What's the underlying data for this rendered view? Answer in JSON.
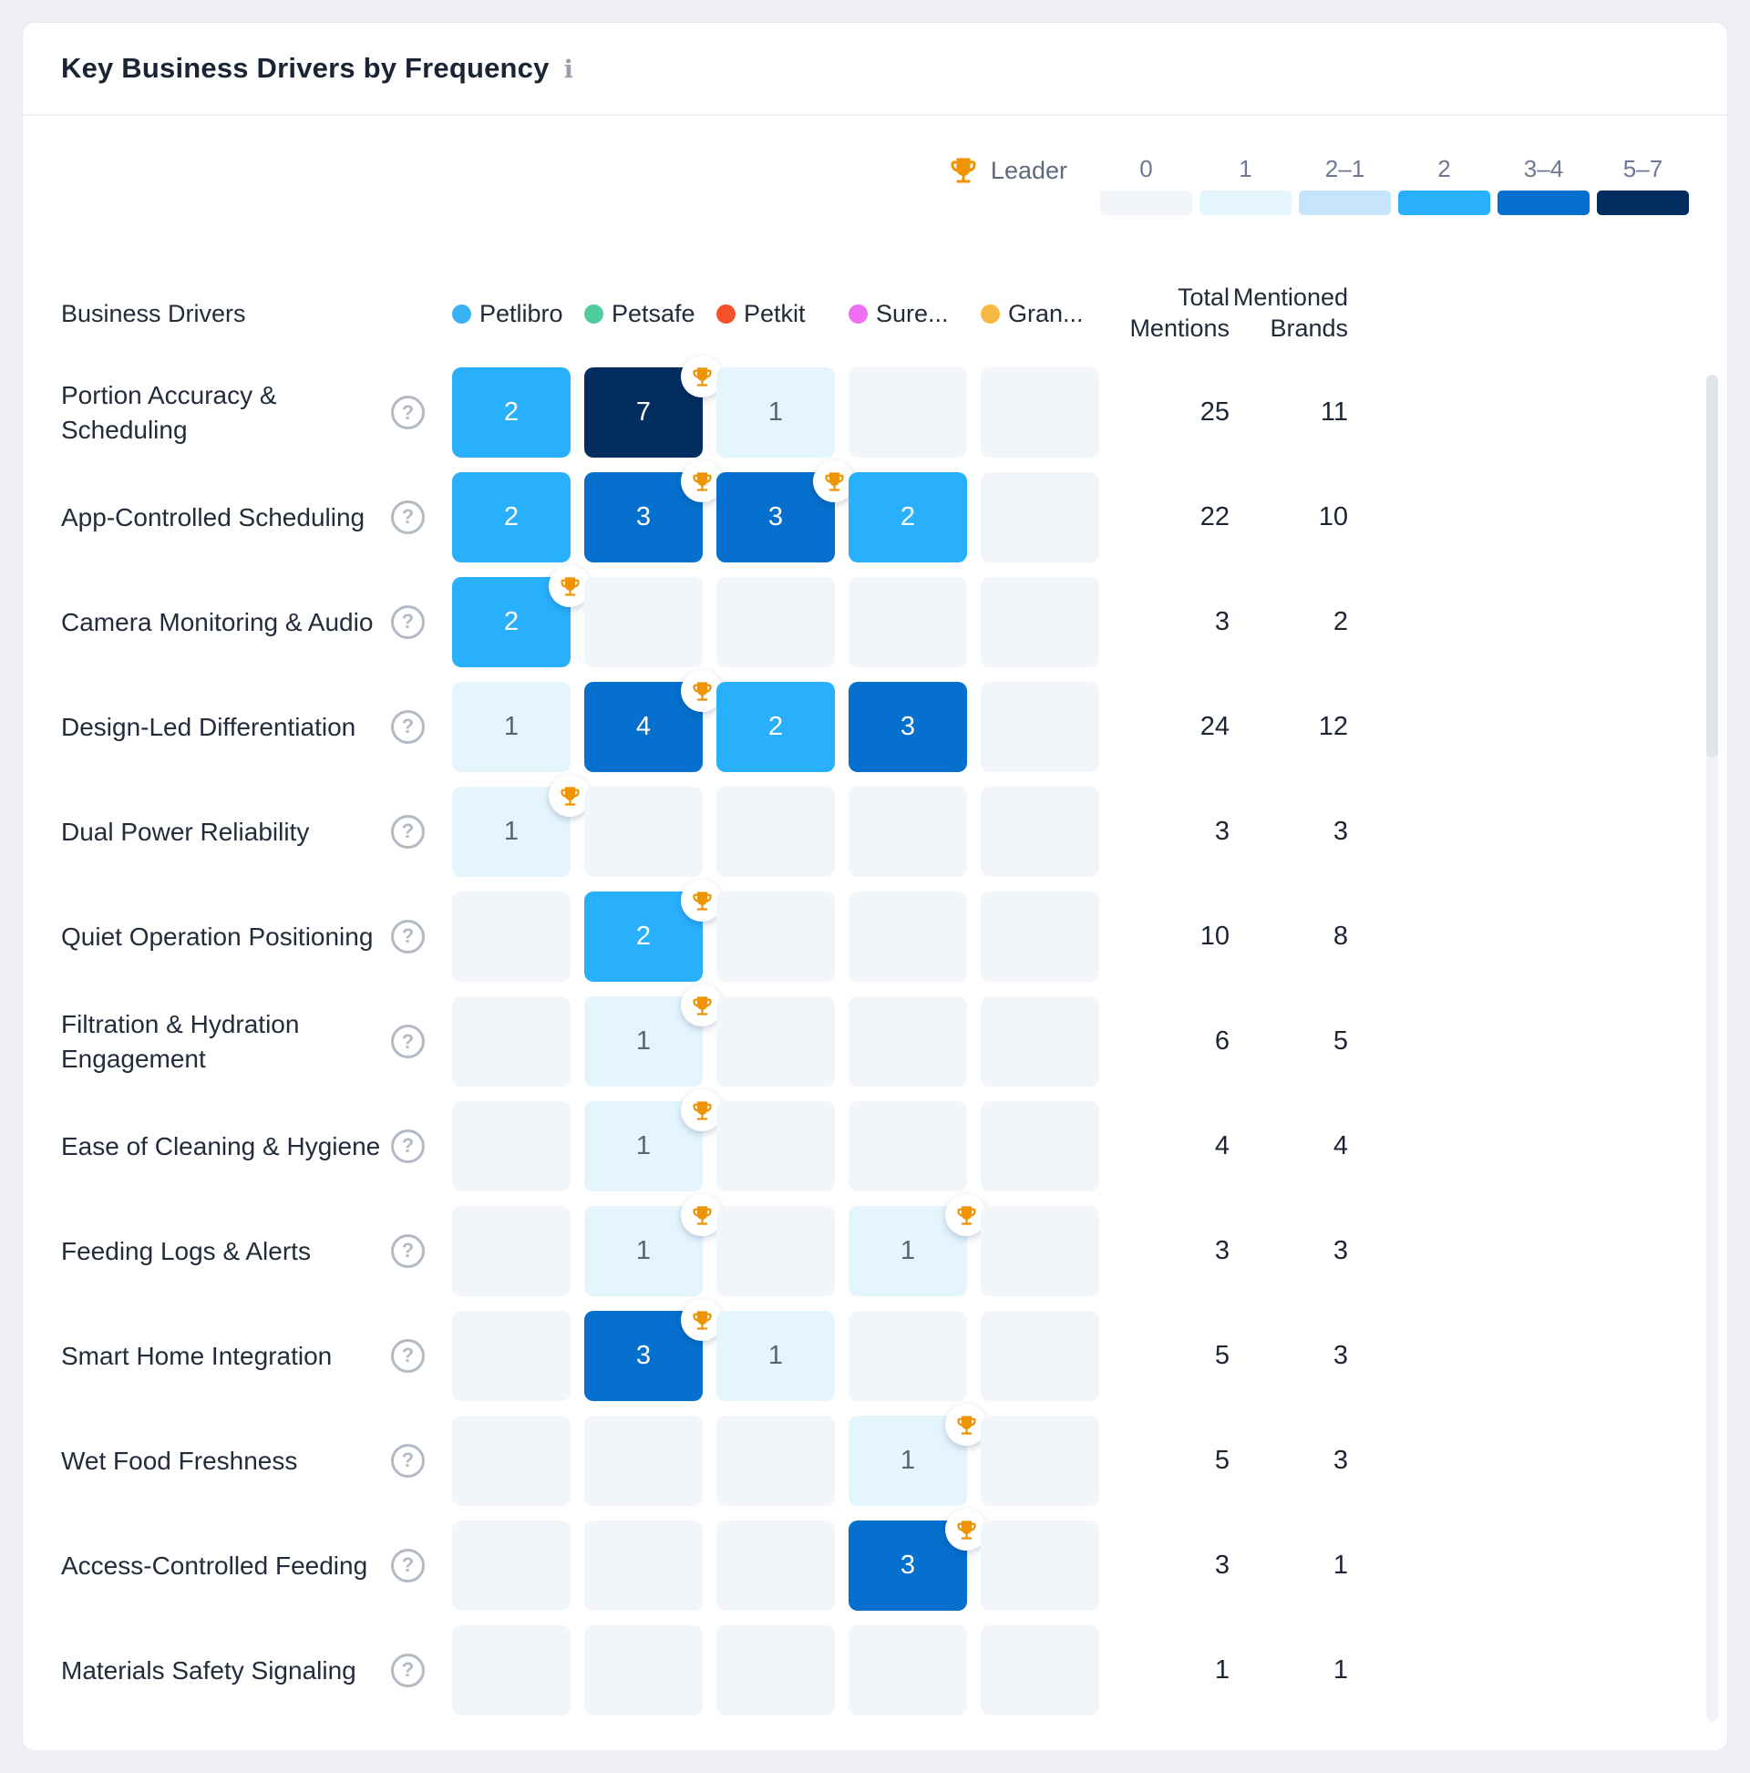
{
  "title": "Key Business Drivers by Frequency",
  "info_icon": "i",
  "help_icon": "?",
  "legend": {
    "leader_label": "Leader",
    "trophy_color": "#ef9400",
    "scale": [
      {
        "label": "0",
        "color": "#f2f5f9",
        "text": "#5a6473"
      },
      {
        "label": "1",
        "color": "#e4f5fd",
        "text": "#5a6473"
      },
      {
        "label": "2–1",
        "color": "#c6e4fb",
        "text": "#5a6473"
      },
      {
        "label": "2",
        "color": "#29b0fc",
        "text": "#ffffff"
      },
      {
        "label": "3–4",
        "color": "#0570cd",
        "text": "#ffffff"
      },
      {
        "label": "5–7",
        "color": "#032d5e",
        "text": "#ffffff"
      }
    ]
  },
  "table": {
    "drivers_header": "Business Drivers",
    "total_header": "Total Mentions",
    "mentioned_header": "Mentioned Brands",
    "brands": [
      {
        "name": "Petlibro",
        "color": "#38b1f6"
      },
      {
        "name": "Petsafe",
        "color": "#50cb9b"
      },
      {
        "name": "Petkit",
        "color": "#f4502a"
      },
      {
        "name": "Sure...",
        "color": "#ef6ef1"
      },
      {
        "name": "Gran...",
        "color": "#f6b944"
      }
    ],
    "rows": [
      {
        "label": "Portion Accuracy & Scheduling",
        "values": [
          2,
          7,
          1,
          0,
          0
        ],
        "leaders": [
          false,
          true,
          false,
          false,
          false
        ],
        "total": 25,
        "mentioned": 11
      },
      {
        "label": "App-Controlled Scheduling",
        "values": [
          2,
          3,
          3,
          2,
          0
        ],
        "leaders": [
          false,
          true,
          true,
          false,
          false
        ],
        "total": 22,
        "mentioned": 10
      },
      {
        "label": "Camera Monitoring & Audio",
        "values": [
          2,
          0,
          0,
          0,
          0
        ],
        "leaders": [
          true,
          false,
          false,
          false,
          false
        ],
        "total": 3,
        "mentioned": 2
      },
      {
        "label": "Design-Led Differentiation",
        "values": [
          1,
          4,
          2,
          3,
          0
        ],
        "leaders": [
          false,
          true,
          false,
          false,
          false
        ],
        "total": 24,
        "mentioned": 12
      },
      {
        "label": "Dual Power Reliability",
        "values": [
          1,
          0,
          0,
          0,
          0
        ],
        "leaders": [
          true,
          false,
          false,
          false,
          false
        ],
        "total": 3,
        "mentioned": 3
      },
      {
        "label": "Quiet Operation Positioning",
        "values": [
          0,
          2,
          0,
          0,
          0
        ],
        "leaders": [
          false,
          true,
          false,
          false,
          false
        ],
        "total": 10,
        "mentioned": 8
      },
      {
        "label": "Filtration & Hydration Engagement",
        "values": [
          0,
          1,
          0,
          0,
          0
        ],
        "leaders": [
          false,
          true,
          false,
          false,
          false
        ],
        "total": 6,
        "mentioned": 5
      },
      {
        "label": "Ease of Cleaning & Hygiene",
        "values": [
          0,
          1,
          0,
          0,
          0
        ],
        "leaders": [
          false,
          true,
          false,
          false,
          false
        ],
        "total": 4,
        "mentioned": 4
      },
      {
        "label": "Feeding Logs & Alerts",
        "values": [
          0,
          1,
          0,
          1,
          0
        ],
        "leaders": [
          false,
          true,
          false,
          true,
          false
        ],
        "total": 3,
        "mentioned": 3
      },
      {
        "label": "Smart Home Integration",
        "values": [
          0,
          3,
          1,
          0,
          0
        ],
        "leaders": [
          false,
          true,
          false,
          false,
          false
        ],
        "total": 5,
        "mentioned": 3
      },
      {
        "label": "Wet Food Freshness",
        "values": [
          0,
          0,
          0,
          1,
          0
        ],
        "leaders": [
          false,
          false,
          false,
          true,
          false
        ],
        "total": 5,
        "mentioned": 3
      },
      {
        "label": "Access-Controlled Feeding",
        "values": [
          0,
          0,
          0,
          3,
          0
        ],
        "leaders": [
          false,
          false,
          false,
          true,
          false
        ],
        "total": 3,
        "mentioned": 1
      },
      {
        "label": "Materials Safety Signaling",
        "values": [
          0,
          0,
          0,
          0,
          0
        ],
        "leaders": [
          false,
          false,
          false,
          false,
          false
        ],
        "total": 1,
        "mentioned": 1
      }
    ]
  },
  "chart_data": {
    "type": "heatmap",
    "title": "Key Business Drivers by Frequency",
    "columns": [
      "Petlibro",
      "Petsafe",
      "Petkit",
      "Sure...",
      "Gran..."
    ],
    "rows": [
      "Portion Accuracy & Scheduling",
      "App-Controlled Scheduling",
      "Camera Monitoring & Audio",
      "Design-Led Differentiation",
      "Dual Power Reliability",
      "Quiet Operation Positioning",
      "Filtration & Hydration Engagement",
      "Ease of Cleaning & Hygiene",
      "Feeding Logs & Alerts",
      "Smart Home Integration",
      "Wet Food Freshness",
      "Access-Controlled Feeding",
      "Materials Safety Signaling"
    ],
    "values": [
      [
        2,
        7,
        1,
        0,
        0
      ],
      [
        2,
        3,
        3,
        2,
        0
      ],
      [
        2,
        0,
        0,
        0,
        0
      ],
      [
        1,
        4,
        2,
        3,
        0
      ],
      [
        1,
        0,
        0,
        0,
        0
      ],
      [
        0,
        2,
        0,
        0,
        0
      ],
      [
        0,
        1,
        0,
        0,
        0
      ],
      [
        0,
        1,
        0,
        0,
        0
      ],
      [
        0,
        1,
        0,
        1,
        0
      ],
      [
        0,
        3,
        1,
        0,
        0
      ],
      [
        0,
        0,
        0,
        1,
        0
      ],
      [
        0,
        0,
        0,
        3,
        0
      ],
      [
        0,
        0,
        0,
        0,
        0
      ]
    ],
    "leaders": [
      [
        "Petsafe"
      ],
      [
        "Petsafe",
        "Petkit"
      ],
      [
        "Petlibro"
      ],
      [
        "Petsafe"
      ],
      [
        "Petlibro"
      ],
      [
        "Petsafe"
      ],
      [
        "Petsafe"
      ],
      [
        "Petsafe"
      ],
      [
        "Petsafe",
        "Sure..."
      ],
      [
        "Petsafe"
      ],
      [
        "Sure..."
      ],
      [
        "Sure..."
      ],
      []
    ],
    "total_mentions": [
      25,
      22,
      3,
      24,
      3,
      10,
      6,
      4,
      3,
      5,
      5,
      3,
      1
    ],
    "mentioned_brands": [
      11,
      10,
      2,
      12,
      3,
      8,
      5,
      4,
      3,
      3,
      3,
      1,
      1
    ],
    "color_scale_bins": [
      "0",
      "1",
      "2–1",
      "2",
      "3–4",
      "5–7"
    ],
    "color_scale_hex": [
      "#f2f5f9",
      "#e4f5fd",
      "#c6e4fb",
      "#29b0fc",
      "#0570cd",
      "#032d5e"
    ],
    "legend_position": "top-right"
  }
}
